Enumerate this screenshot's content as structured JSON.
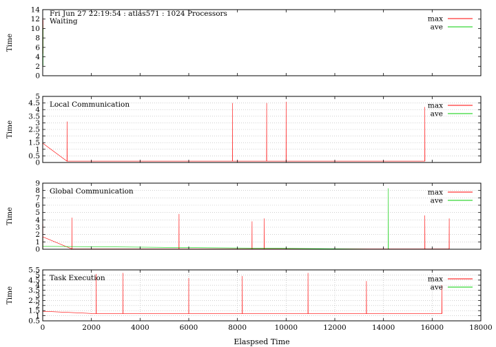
{
  "header": {
    "title": "Fri Jun 27 22:19:54 : atlas571 : 1024 Processors"
  },
  "xlabel": "Elaspsed Time",
  "colors": {
    "max": "#ff0000",
    "ave": "#00cc00",
    "grid": "#b0b0b0"
  },
  "chart_data": [
    {
      "type": "line",
      "title": "Waiting",
      "ylabel": "Time",
      "xlim": [
        0,
        18000
      ],
      "ylim": [
        0,
        14
      ],
      "yticks": [
        0,
        2,
        4,
        6,
        8,
        10,
        12,
        14
      ],
      "ytick_labels": [
        "0",
        "2",
        "4",
        "6",
        "8",
        "10",
        "12",
        "14"
      ],
      "grid": "off",
      "legend_position": "top-right",
      "series": [
        {
          "name": "max",
          "shape": {
            "base": 7.5,
            "spread": 2.2,
            "spikeProb": 0.06,
            "spikeMax": 12.5,
            "floor": 4.5
          }
        },
        {
          "name": "ave",
          "shape": {
            "base": 6.5,
            "spread": 2.4,
            "spikeProb": 0.03,
            "spikeMax": 11,
            "floor": 2
          }
        }
      ]
    },
    {
      "type": "line",
      "title": "Local Communication",
      "ylabel": "Time",
      "xlim": [
        0,
        18000
      ],
      "ylim": [
        0,
        5
      ],
      "yticks": [
        0,
        0.5,
        1,
        1.5,
        2,
        2.5,
        3,
        3.5,
        4,
        4.5,
        5
      ],
      "ytick_labels": [
        "0",
        "0.5",
        "1",
        "1.5",
        "2",
        "2.5",
        "3",
        "3.5",
        "4",
        "4.5",
        "5"
      ],
      "grid": "on",
      "legend_position": "top-right",
      "series": [
        {
          "name": "max",
          "shape": {
            "base": 1.3,
            "spread": 1.0,
            "spikeProb": 0.004,
            "spikeMax": 4.6,
            "floor": 0.1
          }
        },
        {
          "name": "ave",
          "shape": {
            "base": 0.08,
            "spread": 0.04,
            "spikeProb": 0.0,
            "spikeMax": 0.2,
            "floor": 0.03
          }
        }
      ],
      "spikes": [
        [
          1000,
          3.1
        ],
        [
          7800,
          4.5
        ],
        [
          9200,
          4.5
        ],
        [
          10000,
          4.6
        ],
        [
          15700,
          4.2
        ]
      ]
    },
    {
      "type": "line",
      "title": "Global Communication",
      "ylabel": "Time",
      "xlim": [
        0,
        18000
      ],
      "ylim": [
        0,
        9
      ],
      "yticks": [
        0,
        1,
        2,
        3,
        4,
        5,
        6,
        7,
        8,
        9
      ],
      "ytick_labels": [
        "0",
        "1",
        "2",
        "3",
        "4",
        "5",
        "6",
        "7",
        "8",
        "9"
      ],
      "grid": "on",
      "legend_position": "top-right",
      "series": [
        {
          "name": "max",
          "shape": {
            "base": 1.2,
            "spread": 0.9,
            "spikeProb": 0.01,
            "spikeMax": 4.5,
            "floor": 0.05
          }
        },
        {
          "name": "ave",
          "shape": {
            "base": 0.25,
            "spread": 0.3,
            "spikeProb": 0.01,
            "spikeMax": 1.5,
            "floor": 0.0
          }
        }
      ],
      "spikes": [
        [
          1200,
          4.3
        ],
        [
          5600,
          4.8
        ],
        [
          8600,
          3.8
        ],
        [
          9100,
          4.2
        ],
        [
          15700,
          4.6
        ],
        [
          16700,
          4.2
        ]
      ],
      "ave_spikes": [
        [
          14200,
          8.3
        ]
      ]
    },
    {
      "type": "line",
      "title": "Task Execution",
      "ylabel": "Time",
      "xlim": [
        0,
        18000
      ],
      "ylim": [
        0.5,
        5.5
      ],
      "yticks": [
        0.5,
        1,
        1.5,
        2,
        2.5,
        3,
        3.5,
        4,
        4.5,
        5,
        5.5
      ],
      "ytick_labels": [
        "0.5",
        "1",
        "1.5",
        "2",
        "2.5",
        "3",
        "3.5",
        "4",
        "4.5",
        "5",
        "5.5"
      ],
      "xticks": [
        0,
        2000,
        4000,
        6000,
        8000,
        10000,
        12000,
        14000,
        16000,
        18000
      ],
      "xtick_labels": [
        "0",
        "2000",
        "4000",
        "6000",
        "8000",
        "10000",
        "12000",
        "14000",
        "16000",
        "18000"
      ],
      "grid": "on",
      "legend_position": "top-right",
      "series": [
        {
          "name": "max",
          "shape": {
            "base": 2.4,
            "spread": 0.8,
            "spikeProb": 0.02,
            "spikeMax": 5.2,
            "floor": 1.2
          }
        },
        {
          "name": "ave",
          "shape": {
            "base": 1.0,
            "spread": 0.35,
            "spikeProb": 0.02,
            "spikeMax": 2.0,
            "floor": 0.55
          }
        }
      ],
      "spikes": [
        [
          2200,
          5.1
        ],
        [
          3300,
          5.2
        ],
        [
          6000,
          4.7
        ],
        [
          8200,
          4.9
        ],
        [
          10900,
          5.2
        ],
        [
          13300,
          4.4
        ],
        [
          16400,
          4.0
        ]
      ]
    }
  ]
}
